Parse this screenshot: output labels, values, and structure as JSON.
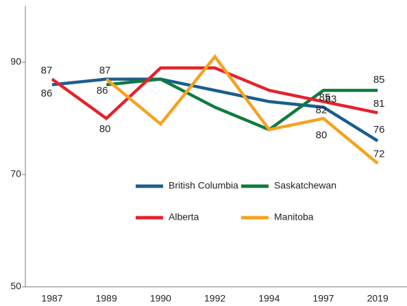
{
  "chart_data": {
    "type": "line",
    "categories": [
      "1987",
      "1989",
      "1990",
      "1992",
      "1994",
      "1997",
      "2019"
    ],
    "series": [
      {
        "name": "British Columbia",
        "color": "#1b5e8c",
        "values": [
          86,
          87,
          87,
          85,
          83,
          82,
          76
        ],
        "value_labels": [
          "86",
          "87",
          null,
          null,
          null,
          "82",
          "76"
        ]
      },
      {
        "name": "Saskatchewan",
        "color": "#0f7a3f",
        "values": [
          null,
          86,
          87,
          82,
          78,
          85,
          85
        ],
        "value_labels": [
          null,
          "86",
          null,
          null,
          null,
          "85",
          "85"
        ]
      },
      {
        "name": "Alberta",
        "color": "#e3232b",
        "values": [
          87,
          80,
          89,
          89,
          85,
          83,
          81
        ],
        "value_labels": [
          "87",
          "80",
          null,
          null,
          null,
          "83",
          "81"
        ]
      },
      {
        "name": "Manitoba",
        "color": "#f5a21f",
        "values": [
          null,
          87,
          79,
          91,
          78,
          80,
          72
        ],
        "value_labels": [
          null,
          null,
          null,
          null,
          null,
          "80",
          "72"
        ]
      }
    ],
    "ylim": [
      50,
      100
    ],
    "yticks": [
      50,
      70,
      90
    ]
  }
}
